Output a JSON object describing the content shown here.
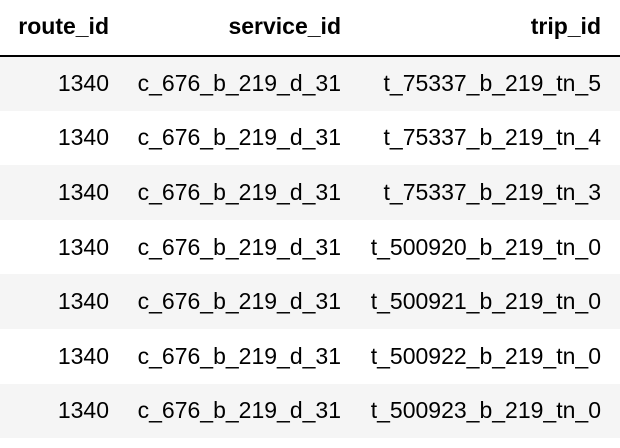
{
  "table": {
    "columns": [
      "route_id",
      "service_id",
      "trip_id"
    ],
    "rows": [
      [
        "1340",
        "c_676_b_219_d_31",
        "t_75337_b_219_tn_5"
      ],
      [
        "1340",
        "c_676_b_219_d_31",
        "t_75337_b_219_tn_4"
      ],
      [
        "1340",
        "c_676_b_219_d_31",
        "t_75337_b_219_tn_3"
      ],
      [
        "1340",
        "c_676_b_219_d_31",
        "t_500920_b_219_tn_0"
      ],
      [
        "1340",
        "c_676_b_219_d_31",
        "t_500921_b_219_tn_0"
      ],
      [
        "1340",
        "c_676_b_219_d_31",
        "t_500922_b_219_tn_0"
      ],
      [
        "1340",
        "c_676_b_219_d_31",
        "t_500923_b_219_tn_0"
      ]
    ]
  },
  "colors": {
    "row_stripe": "#f5f5f5",
    "row_plain": "#ffffff",
    "header_rule": "#000000",
    "text": "#000000"
  }
}
